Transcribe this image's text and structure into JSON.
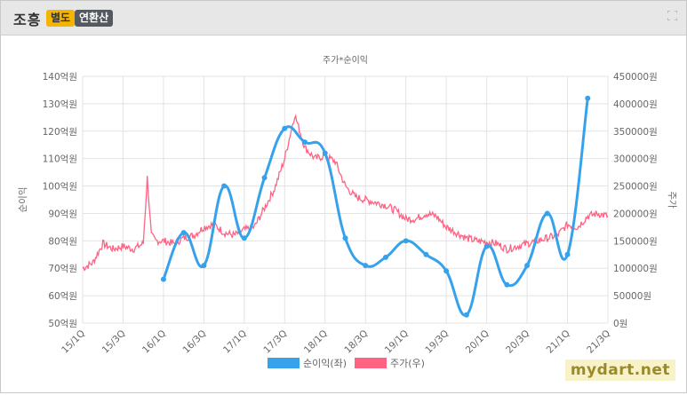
{
  "header": {
    "title": "조흥",
    "badge_separate": "별도",
    "badge_annual": "연환산"
  },
  "watermark": "mydart.net",
  "chart_data": {
    "type": "line",
    "title": "주가*순이익",
    "ylabel_left": "순이익",
    "ylabel_right": "주가",
    "left_ticks": [
      "50억원",
      "60억원",
      "70억원",
      "80억원",
      "90억원",
      "100억원",
      "110억원",
      "120억원",
      "130억원",
      "140억원"
    ],
    "right_ticks": [
      "0원",
      "50000원",
      "100000원",
      "150000원",
      "200000원",
      "250000원",
      "300000원",
      "350000원",
      "400000원",
      "450000원"
    ],
    "x_ticks": [
      "15/1Q",
      "15/3Q",
      "16/1Q",
      "16/3Q",
      "17/1Q",
      "17/3Q",
      "18/1Q",
      "18/3Q",
      "19/1Q",
      "19/3Q",
      "20/1Q",
      "20/3Q",
      "21/1Q",
      "21/3Q"
    ],
    "left_ylim": [
      50,
      140
    ],
    "right_ylim": [
      0,
      450000
    ],
    "series": [
      {
        "name": "순이익(좌)",
        "color": "#36a2eb",
        "axis": "left",
        "x_index": [
          4,
          5,
          6,
          7,
          8,
          9,
          10,
          11,
          12,
          13,
          14,
          15,
          16,
          17,
          18,
          19,
          20,
          21,
          22,
          23,
          24,
          25,
          26
        ],
        "values": [
          66,
          83,
          71,
          100,
          81,
          103,
          121,
          116,
          112,
          81,
          71,
          74,
          80,
          75,
          69,
          53,
          78,
          64,
          71,
          90,
          75,
          132,
          null
        ]
      },
      {
        "name": "주가(우)",
        "color": "#ff6384",
        "axis": "right",
        "x_index": [
          0,
          0.5,
          1,
          1.5,
          2,
          2.5,
          3,
          3.2,
          3.4,
          3.6,
          4,
          4.5,
          5,
          5.5,
          6,
          6.5,
          7,
          7.5,
          8,
          8.5,
          9,
          9.5,
          10,
          10.5,
          11,
          11.5,
          12,
          12.5,
          13,
          13.5,
          14,
          14.5,
          15,
          15.5,
          16,
          16.5,
          17,
          17.5,
          18,
          18.5,
          19,
          19.5,
          20,
          20.5,
          21,
          21.5,
          22,
          22.5,
          23,
          23.5,
          24,
          24.5,
          25,
          25.5,
          26
        ],
        "values": [
          100000,
          110000,
          145000,
          135000,
          140000,
          135000,
          145000,
          265000,
          160000,
          150000,
          150000,
          145000,
          155000,
          160000,
          175000,
          180000,
          165000,
          160000,
          170000,
          175000,
          210000,
          245000,
          300000,
          380000,
          320000,
          300000,
          305000,
          295000,
          250000,
          230000,
          225000,
          220000,
          215000,
          205000,
          190000,
          190000,
          200000,
          195000,
          175000,
          165000,
          155000,
          150000,
          148000,
          145000,
          135000,
          140000,
          145000,
          150000,
          155000,
          160000,
          180000,
          175000,
          195000,
          200000,
          195000
        ]
      }
    ],
    "legend_position": "bottom"
  }
}
